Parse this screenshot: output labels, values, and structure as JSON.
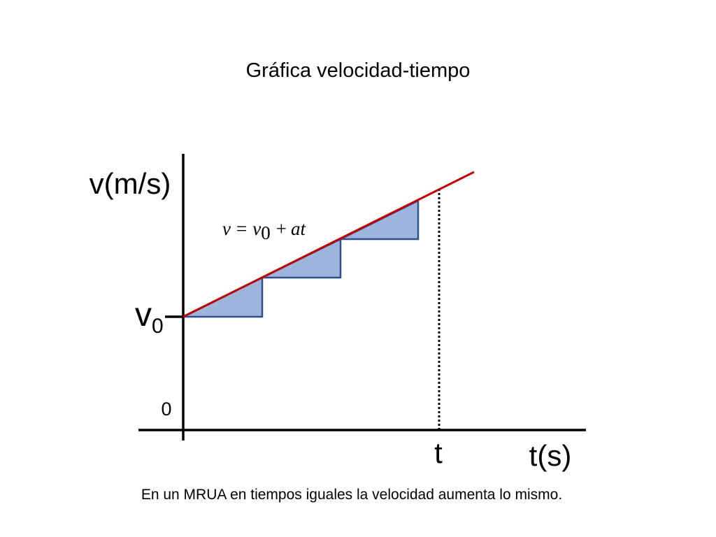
{
  "title": "Gráfica velocidad-tiempo",
  "axes": {
    "y_label": "v(m/s)",
    "x_label": "t(s)",
    "origin": "0",
    "t_mark": "t",
    "v0": {
      "base": "v",
      "sub": "0"
    }
  },
  "equation": {
    "lhs": "v",
    "equals": "=",
    "v0_base": "v",
    "v0_sub": "0",
    "plus": "+",
    "term": "at"
  },
  "caption": "En un MRUA en tiempos iguales la velocidad aumenta lo mismo."
}
